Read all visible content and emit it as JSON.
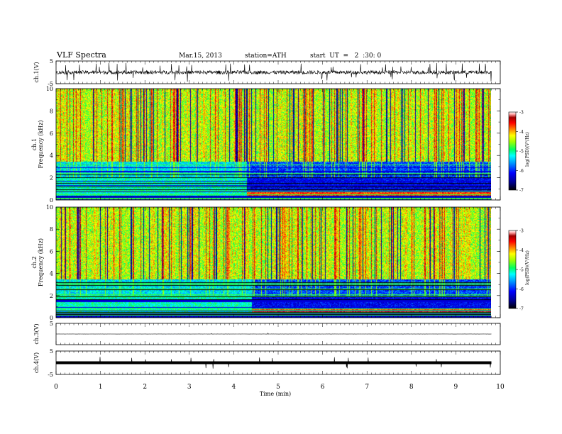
{
  "header": {
    "title": "VLF  Spectra",
    "date": "Mar.15, 2013",
    "station": "station=ATH",
    "start": "start  UT  =   2  :30: 0"
  },
  "chart_data": {
    "type": "spectrogram",
    "x_axis": {
      "label": "Time  (min)",
      "range": [
        0,
        10
      ],
      "ticks": [
        "0",
        "1",
        "2",
        "3",
        "4",
        "5",
        "6",
        "7",
        "8",
        "9",
        "10"
      ],
      "data_extent_min": 9.8
    },
    "panels": [
      {
        "id": "ch1-waveform",
        "type": "line",
        "ylabel": "ch.1(V)",
        "ylim": [
          -5,
          5
        ],
        "ticks": [
          "5",
          "-5"
        ],
        "baseline": 0,
        "noise_amplitude": 0.8,
        "spike_amplitude": 4.2
      },
      {
        "id": "ch1-spectrogram",
        "type": "heatmap",
        "ylabel_top": "ch.1",
        "ylabel": "Frequency  (kHz)",
        "ylim": [
          0,
          10
        ],
        "ticks": [
          "0",
          "2",
          "4",
          "6",
          "8",
          "10"
        ],
        "colorbar": {
          "label": "log(PSD)(V²/Hz)",
          "ticks": [
            "-3",
            "-4",
            "-5",
            "-6",
            "-7"
          ],
          "range": [
            -7,
            -3
          ]
        }
      },
      {
        "id": "ch2-spectrogram",
        "type": "heatmap",
        "ylabel_top": "ch.2",
        "ylabel": "Frequency  (kHz)",
        "ylim": [
          0,
          10
        ],
        "ticks": [
          "0",
          "2",
          "4",
          "6",
          "8",
          "10"
        ],
        "colorbar": {
          "label": "log(PSD)(V²/Hz)",
          "ticks": [
            "-3",
            "-4",
            "-5",
            "-6",
            "-7"
          ],
          "range": [
            -7,
            -3
          ]
        }
      },
      {
        "id": "ch3-waveform",
        "type": "line",
        "ylabel": "ch.3(V)",
        "ylim": [
          -5,
          5
        ],
        "ticks": [
          "5"
        ],
        "baseline": 0,
        "noise_amplitude": 0.05,
        "spike_amplitude": 0.4
      },
      {
        "id": "ch4-waveform",
        "type": "line",
        "ylabel": "ch.4(V)",
        "ylim": [
          -5,
          5
        ],
        "ticks": [
          "5",
          "-5"
        ],
        "baseline": 0,
        "noise_amplitude": 0.2,
        "spike_amplitude": 2.5
      }
    ],
    "colormap": [
      "#000000",
      "#000080",
      "#0000ff",
      "#0080ff",
      "#00e0ff",
      "#00ff80",
      "#80ff00",
      "#ffff00",
      "#ff8000",
      "#ff0000",
      "#800000",
      "#ffffff"
    ]
  }
}
